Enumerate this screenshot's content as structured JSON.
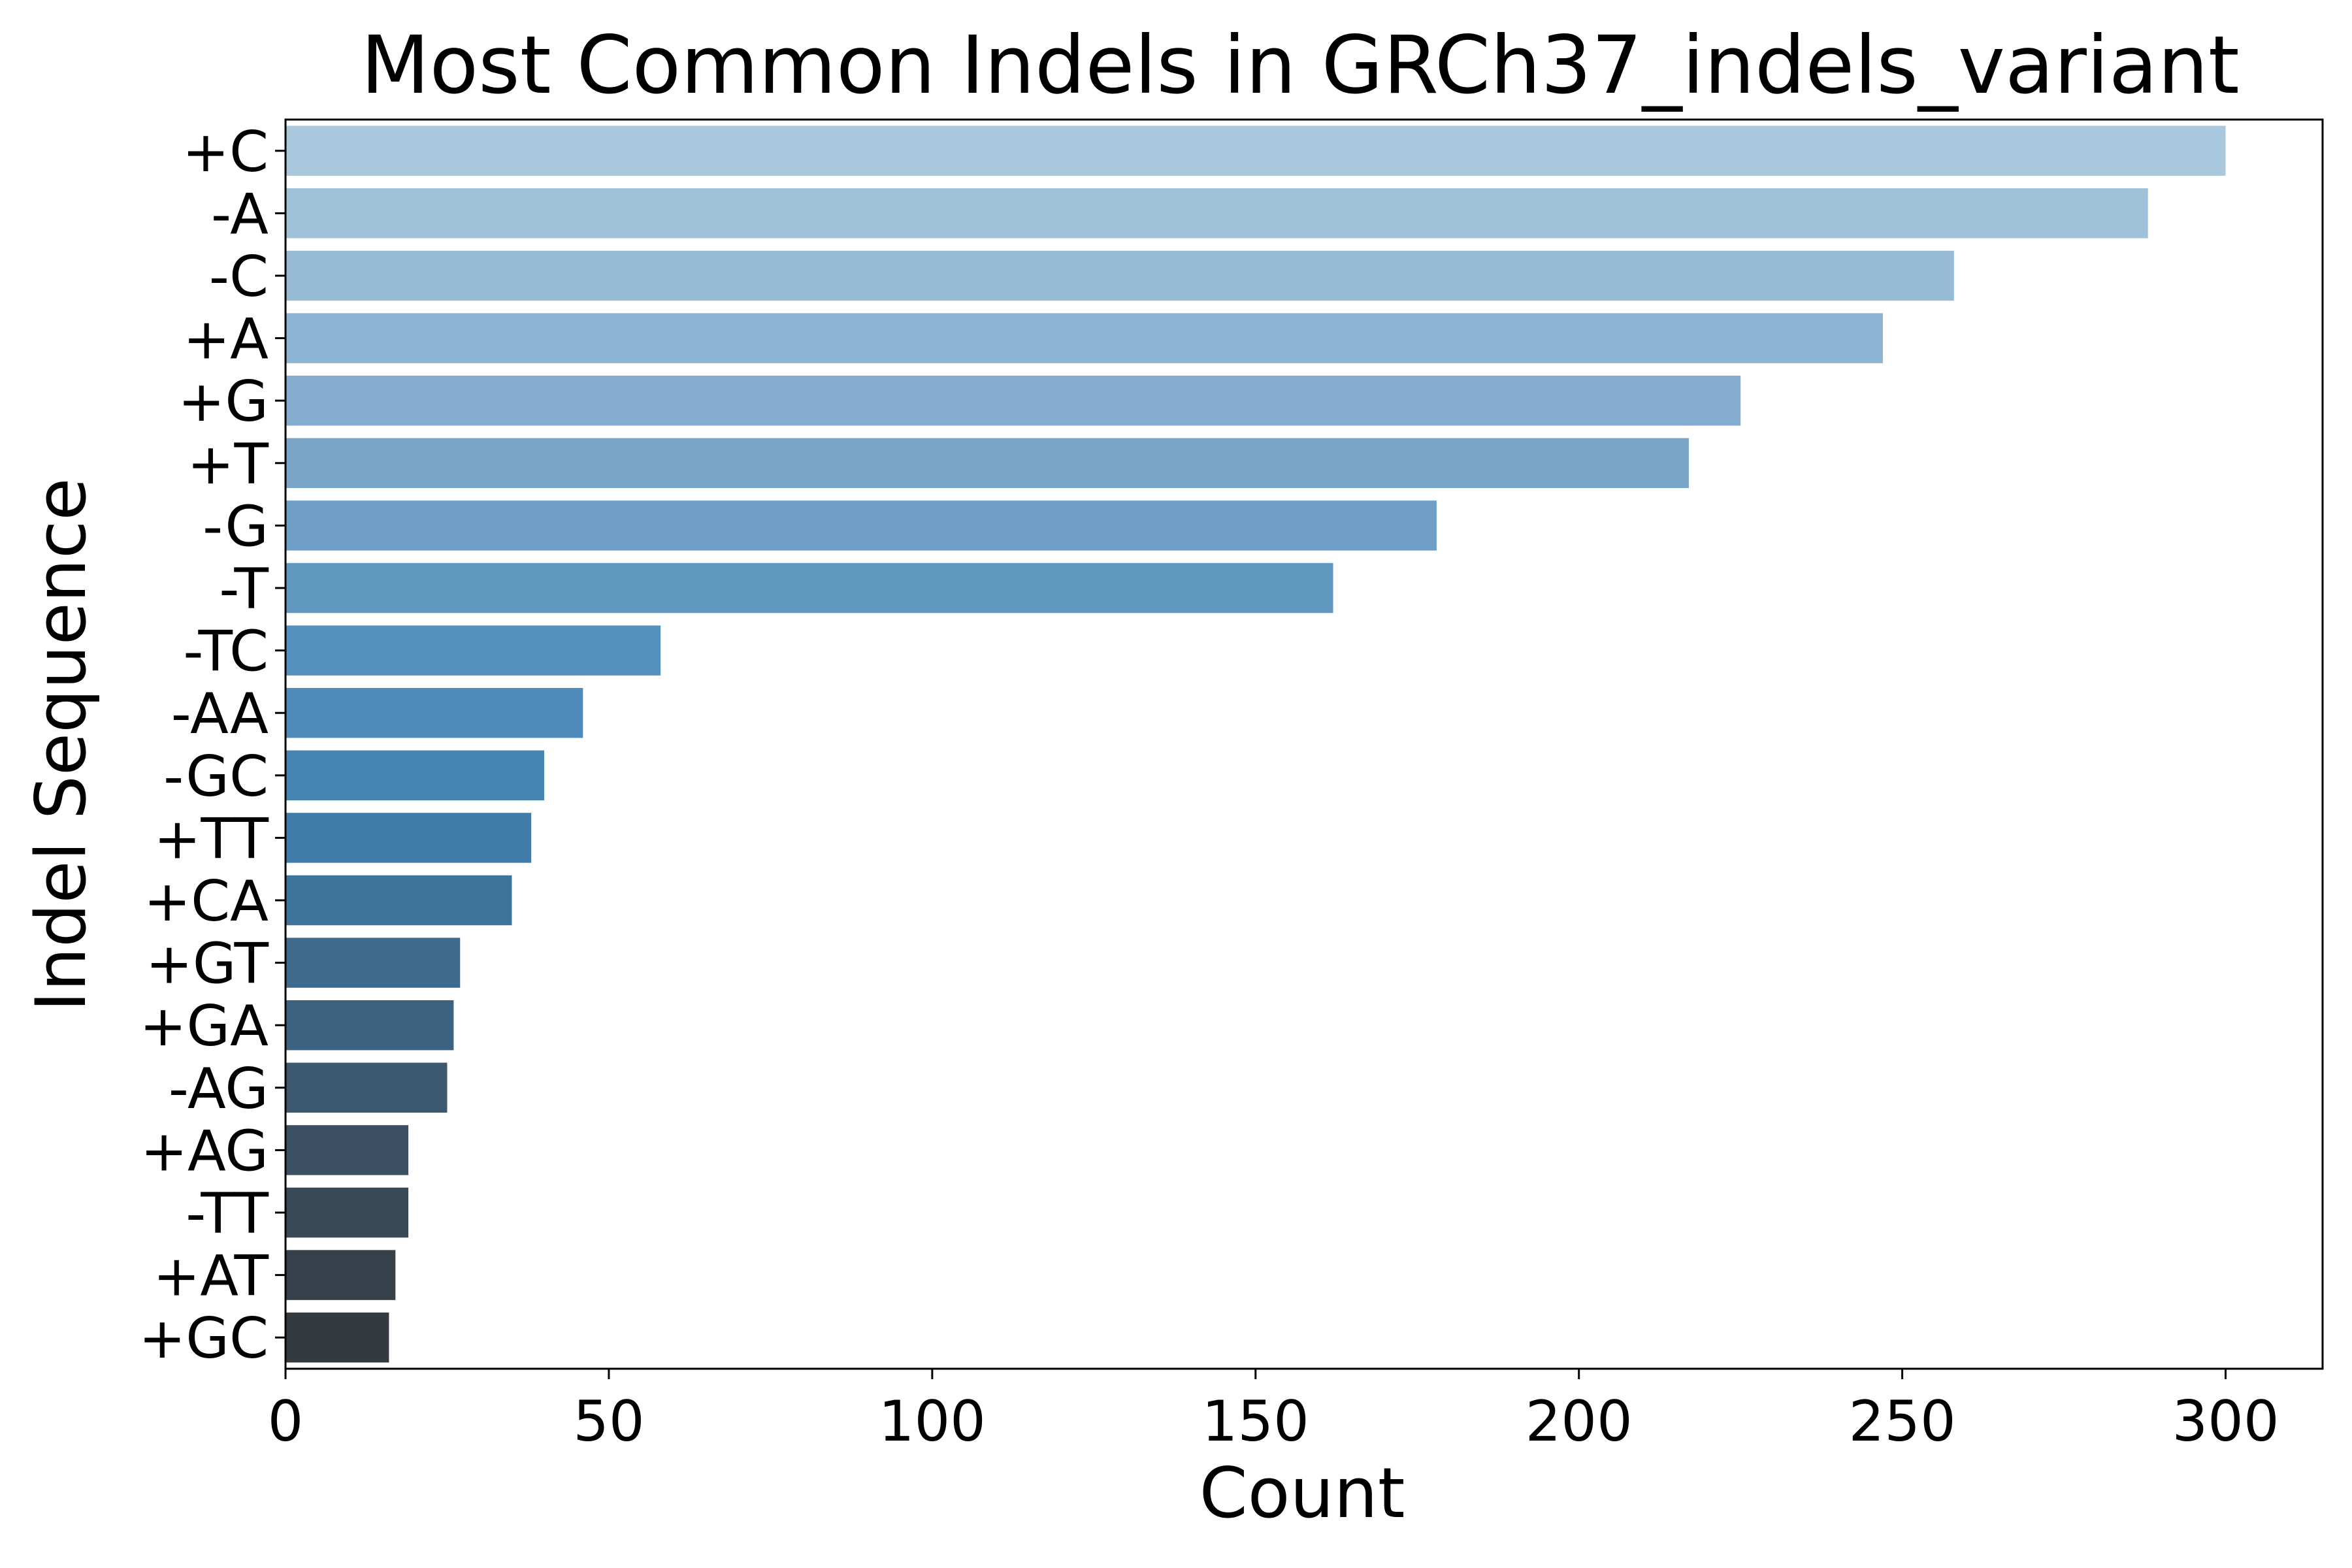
{
  "chart_data": {
    "type": "bar",
    "orientation": "horizontal",
    "title": "Most Common Indels in GRCh37_indels_variant",
    "xlabel": "Count",
    "ylabel": "Indel Sequence",
    "xlim": [
      0,
      315
    ],
    "xticks": [
      "0",
      "50",
      "100",
      "150",
      "200",
      "250",
      "300"
    ],
    "grid": false,
    "legend": "none",
    "palette": "Blues_d (light to dark)",
    "categories": [
      "+C",
      "-A",
      "-C",
      "+A",
      "+G",
      "+T",
      "-G",
      "-T",
      "-TC",
      "-AA",
      "-GC",
      "+TT",
      "+CA",
      "+GT",
      "+GA",
      "-AG",
      "+AG",
      "-TT",
      "+AT",
      "+GC"
    ],
    "values": [
      300,
      288,
      258,
      247,
      225,
      217,
      178,
      162,
      58,
      46,
      40,
      38,
      35,
      27,
      26,
      25,
      19,
      19,
      17,
      16
    ],
    "colors": [
      "#a9c8de",
      "#a0c2d9",
      "#97bbd5",
      "#8cb3d1",
      "#83acce",
      "#7aa5c9",
      "#6f9fc7",
      "#6299c1",
      "#5591bd",
      "#4e8bba",
      "#4684b4",
      "#417ca9",
      "#3e739c",
      "#3e6a8d",
      "#3d6280",
      "#3c5970",
      "#3b5163",
      "#394957",
      "#37414b",
      "#353a40"
    ]
  }
}
